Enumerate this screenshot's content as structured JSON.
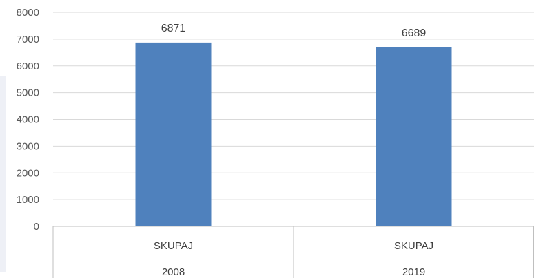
{
  "chart_data": {
    "type": "bar",
    "categories": [
      "SKUPAJ",
      "SKUPAJ"
    ],
    "groups": [
      "2008",
      "2019"
    ],
    "values": [
      6871,
      6689
    ],
    "data_labels": [
      "6871",
      "6689"
    ],
    "ylim": [
      0,
      8000
    ],
    "yticks": [
      0,
      1000,
      2000,
      3000,
      4000,
      5000,
      6000,
      7000,
      8000
    ],
    "grid": true,
    "legend": "none",
    "bar_color": "#4f81bd"
  }
}
